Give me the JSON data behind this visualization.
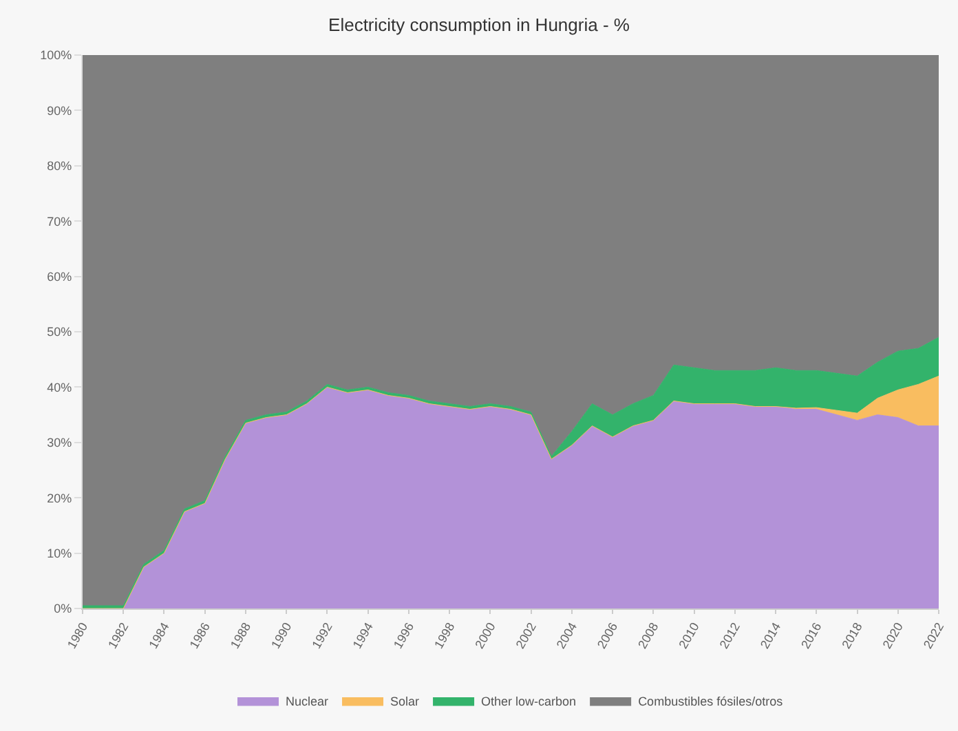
{
  "chart_data": {
    "type": "area",
    "stacked": true,
    "title": "Electricity consumption in Hungria - %",
    "x": [
      1980,
      1981,
      1982,
      1983,
      1984,
      1985,
      1986,
      1987,
      1988,
      1989,
      1990,
      1991,
      1992,
      1993,
      1994,
      1995,
      1996,
      1997,
      1998,
      1999,
      2000,
      2001,
      2002,
      2003,
      2004,
      2005,
      2006,
      2007,
      2008,
      2009,
      2010,
      2011,
      2012,
      2013,
      2014,
      2015,
      2016,
      2017,
      2018,
      2019,
      2020,
      2021,
      2022
    ],
    "series": [
      {
        "name": "Nuclear",
        "color": "#b392d8",
        "values": [
          0,
          0,
          0,
          7.5,
          10,
          17.5,
          19,
          27,
          33.5,
          34.5,
          35,
          37,
          40,
          39,
          39.5,
          38.5,
          38,
          37,
          36.5,
          36,
          36.5,
          36,
          35,
          27,
          29.5,
          33,
          31,
          33,
          34,
          37.5,
          37,
          37,
          37,
          36.5,
          36.5,
          36,
          36,
          35,
          34,
          35,
          34.5,
          33,
          33
        ]
      },
      {
        "name": "Solar",
        "color": "#f9bd60",
        "values": [
          0,
          0,
          0,
          0,
          0,
          0,
          0,
          0,
          0,
          0,
          0,
          0,
          0,
          0,
          0,
          0,
          0,
          0,
          0,
          0,
          0,
          0,
          0,
          0,
          0,
          0,
          0,
          0,
          0,
          0,
          0,
          0,
          0,
          0,
          0,
          0.2,
          0.3,
          0.8,
          1.3,
          3,
          5,
          7.5,
          9
        ]
      },
      {
        "name": "Other low-carbon",
        "color": "#33b36b",
        "values": [
          0.5,
          0.5,
          0.5,
          0.5,
          0.5,
          0.5,
          0.5,
          0.5,
          0.5,
          0.5,
          0.5,
          0.5,
          0.5,
          0.5,
          0.5,
          0.5,
          0.5,
          0.5,
          0.5,
          0.5,
          0.5,
          0.5,
          0.5,
          0.5,
          2.5,
          4,
          4,
          4,
          4.5,
          6.5,
          6.5,
          6,
          6,
          6.5,
          7,
          6.8,
          6.7,
          6.7,
          6.7,
          6.5,
          7,
          6.5,
          7
        ]
      },
      {
        "name": "Combustibles fósiles/otros",
        "color": "#7f7f7f",
        "values": [
          99.5,
          99.5,
          99.5,
          92,
          89.5,
          82,
          80.5,
          72.5,
          66,
          65,
          64.5,
          62.5,
          59.5,
          60.5,
          60,
          61,
          61.5,
          62.5,
          63,
          63.5,
          63,
          63.5,
          64.5,
          72.5,
          68,
          63,
          65,
          63,
          61.5,
          56,
          56.5,
          57,
          57,
          57,
          56.5,
          57,
          57,
          57.5,
          58,
          55.5,
          53.5,
          53,
          51
        ]
      }
    ],
    "xlim": [
      1980,
      2022
    ],
    "xticks": [
      1980,
      1982,
      1984,
      1986,
      1988,
      1990,
      1992,
      1994,
      1996,
      1998,
      2000,
      2002,
      2004,
      2006,
      2008,
      2010,
      2012,
      2014,
      2016,
      2018,
      2020,
      2022
    ],
    "ylim": [
      0,
      100
    ],
    "yticks": [
      {
        "value": 0,
        "label": "0%"
      },
      {
        "value": 10,
        "label": "10%"
      },
      {
        "value": 20,
        "label": "20%"
      },
      {
        "value": 30,
        "label": "30%"
      },
      {
        "value": 40,
        "label": "40%"
      },
      {
        "value": 50,
        "label": "50%"
      },
      {
        "value": 60,
        "label": "60%"
      },
      {
        "value": 70,
        "label": "70%"
      },
      {
        "value": 80,
        "label": "80%"
      },
      {
        "value": 90,
        "label": "90%"
      },
      {
        "value": 100,
        "label": "100%"
      }
    ],
    "legend": "bottom"
  }
}
